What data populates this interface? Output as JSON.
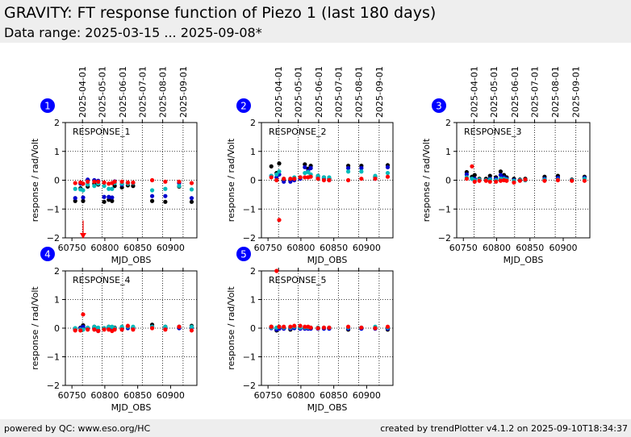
{
  "header": {
    "title": "GRAVITY: FT response function of Piezo 1 (last 180 days)",
    "subtitle": "Data range: 2025-03-15 ... 2025-09-08*"
  },
  "footer": {
    "left": "powered by QC: www.eso.org/HC",
    "right": "created by trendPlotter v4.1.2 on 2025-09-10T18:34:37"
  },
  "colors": {
    "black": "#000000",
    "blue": "#0000cc",
    "cyan": "#00bbbb",
    "red": "#ff0000",
    "badge": "#0000ff"
  },
  "chart_data": [
    {
      "type": "scatter",
      "panel": "1",
      "label": "RESPONSE_1",
      "xlabel": "MJD_OBS",
      "ylabel": "response / rad/Volt",
      "xlim": [
        60740,
        60940
      ],
      "ylim": [
        -2,
        2
      ],
      "xticks": [
        60750,
        60800,
        60850,
        60900
      ],
      "xtick_labels": [
        "60750",
        "60800",
        "60850",
        "60900"
      ],
      "yticks": [
        -2,
        -1,
        0,
        1,
        2
      ],
      "ytick_labels": [
        "−2",
        "−1",
        "0",
        "1",
        "2"
      ],
      "date_ticks": [
        60766,
        60796,
        60827,
        60857,
        60888,
        60919
      ],
      "date_labels": [
        "2025-04-01",
        "2025-05-01",
        "2025-06-01",
        "2025-07-01",
        "2025-08-01",
        "2025-09-01"
      ],
      "series": [
        {
          "color": "black",
          "x": [
            60755,
            60763,
            60767,
            60774,
            60784,
            60790,
            60799,
            60806,
            60811,
            60815,
            60826,
            60835,
            60843,
            60872,
            60892,
            60913,
            60932
          ],
          "y": [
            -0.72,
            -0.28,
            -0.72,
            -0.22,
            -0.12,
            -0.15,
            -0.75,
            -0.68,
            -0.72,
            -0.2,
            -0.25,
            -0.18,
            -0.2,
            -0.72,
            -0.75,
            -0.22,
            -0.75
          ]
        },
        {
          "color": "blue",
          "x": [
            60755,
            60763,
            60767,
            60774,
            60784,
            60790,
            60799,
            60806,
            60811,
            60815,
            60826,
            60835,
            60843,
            60872,
            60892,
            60913,
            60932
          ],
          "y": [
            -0.62,
            -0.12,
            -0.6,
            0.02,
            0.0,
            -0.02,
            -0.58,
            -0.58,
            -0.6,
            -0.04,
            -0.15,
            -0.1,
            -0.1,
            -0.55,
            -0.55,
            -0.1,
            -0.62
          ]
        },
        {
          "color": "cyan",
          "x": [
            60755,
            60763,
            60767,
            60774,
            60784,
            60790,
            60799,
            60806,
            60811,
            60815,
            60826,
            60835,
            60843,
            60872,
            60892,
            60913,
            60932
          ],
          "y": [
            -0.3,
            -0.32,
            -0.35,
            -0.15,
            -0.2,
            -0.12,
            -0.2,
            -0.3,
            -0.3,
            -0.1,
            -0.12,
            -0.12,
            -0.1,
            -0.35,
            -0.3,
            -0.2,
            -0.32
          ]
        },
        {
          "color": "red",
          "x": [
            60755,
            60763,
            60767,
            60774,
            60784,
            60790,
            60799,
            60806,
            60811,
            60815,
            60826,
            60835,
            60843,
            60872,
            60892,
            60913,
            60932
          ],
          "y": [
            -0.1,
            -0.08,
            -0.12,
            -0.05,
            -0.05,
            -0.05,
            -0.08,
            -0.12,
            -0.1,
            -0.05,
            -0.05,
            -0.08,
            -0.08,
            0.0,
            -0.05,
            -0.05,
            -0.1
          ]
        }
      ],
      "arrow": {
        "x": 60767,
        "from": -1.4,
        "to": -2.0
      }
    },
    {
      "type": "scatter",
      "panel": "2",
      "label": "RESPONSE_2",
      "xlabel": "MJD_OBS",
      "ylabel": "response / rad/Volt",
      "xlim": [
        60740,
        60940
      ],
      "ylim": [
        -2,
        2
      ],
      "xticks": [
        60750,
        60800,
        60850,
        60900
      ],
      "xtick_labels": [
        "60750",
        "60800",
        "60850",
        "60900"
      ],
      "yticks": [
        -2,
        -1,
        0,
        1,
        2
      ],
      "ytick_labels": [
        "−2",
        "−1",
        "0",
        "1",
        "2"
      ],
      "date_ticks": [
        60766,
        60796,
        60827,
        60857,
        60888,
        60919
      ],
      "date_labels": [
        "2025-04-01",
        "2025-05-01",
        "2025-06-01",
        "2025-07-01",
        "2025-08-01",
        "2025-09-01"
      ],
      "series": [
        {
          "color": "black",
          "x": [
            60755,
            60763,
            60767,
            60774,
            60784,
            60790,
            60799,
            60806,
            60811,
            60815,
            60826,
            60835,
            60843,
            60872,
            60892,
            60913,
            60932
          ],
          "y": [
            0.48,
            0.25,
            0.58,
            0.0,
            0.0,
            0.05,
            0.1,
            0.55,
            0.4,
            0.5,
            0.15,
            0.1,
            0.05,
            0.5,
            0.5,
            0.12,
            0.52
          ]
        },
        {
          "color": "blue",
          "x": [
            60755,
            60763,
            60767,
            60774,
            60784,
            60790,
            60799,
            60806,
            60811,
            60815,
            60826,
            60835,
            60843,
            60872,
            60892,
            60913,
            60932
          ],
          "y": [
            0.15,
            0.1,
            0.2,
            -0.05,
            -0.05,
            0.0,
            0.05,
            0.45,
            0.32,
            0.42,
            0.1,
            0.05,
            0.0,
            0.42,
            0.42,
            0.05,
            0.45
          ]
        },
        {
          "color": "cyan",
          "x": [
            60755,
            60763,
            60767,
            60774,
            60784,
            60790,
            60799,
            60806,
            60811,
            60815,
            60826,
            60835,
            60843,
            60872,
            60892,
            60913,
            60932
          ],
          "y": [
            0.15,
            0.2,
            0.3,
            0.05,
            0.05,
            0.1,
            0.1,
            0.25,
            0.28,
            0.2,
            0.15,
            0.1,
            0.1,
            0.3,
            0.3,
            0.15,
            0.25
          ]
        },
        {
          "color": "red",
          "x": [
            60755,
            60763,
            60767,
            60774,
            60784,
            60790,
            60799,
            60806,
            60811,
            60815,
            60826,
            60835,
            60843,
            60872,
            60892,
            60913,
            60932
          ],
          "y": [
            0.1,
            0.0,
            -1.38,
            0.05,
            0.05,
            0.05,
            0.1,
            0.1,
            0.1,
            0.12,
            0.05,
            0.0,
            0.0,
            0.0,
            0.05,
            0.05,
            0.12
          ]
        }
      ]
    },
    {
      "type": "scatter",
      "panel": "3",
      "label": "RESPONSE_3",
      "xlabel": "MJD_OBS",
      "ylabel": "response / rad/Volt",
      "xlim": [
        60740,
        60940
      ],
      "ylim": [
        -2,
        2
      ],
      "xticks": [
        60750,
        60800,
        60850,
        60900
      ],
      "xtick_labels": [
        "60750",
        "60800",
        "60850",
        "60900"
      ],
      "yticks": [
        -2,
        -1,
        0,
        1,
        2
      ],
      "ytick_labels": [
        "−2",
        "−1",
        "0",
        "1",
        "2"
      ],
      "date_ticks": [
        60766,
        60796,
        60827,
        60857,
        60888,
        60919
      ],
      "date_labels": [
        "2025-04-01",
        "2025-05-01",
        "2025-06-01",
        "2025-07-01",
        "2025-08-01",
        "2025-09-01"
      ],
      "series": [
        {
          "color": "black",
          "x": [
            60755,
            60763,
            60767,
            60774,
            60784,
            60790,
            60799,
            60806,
            60811,
            60815,
            60826,
            60835,
            60843,
            60872,
            60892,
            60913,
            60932
          ],
          "y": [
            0.28,
            0.12,
            0.18,
            0.05,
            0.05,
            0.15,
            0.1,
            0.3,
            0.18,
            0.1,
            0.05,
            0.02,
            0.05,
            0.12,
            0.15,
            0.02,
            0.12
          ]
        },
        {
          "color": "blue",
          "x": [
            60755,
            60763,
            60767,
            60774,
            60784,
            60790,
            60799,
            60806,
            60811,
            60815,
            60826,
            60835,
            60843,
            60872,
            60892,
            60913,
            60932
          ],
          "y": [
            0.2,
            0.05,
            0.05,
            0.0,
            0.0,
            0.05,
            0.05,
            0.18,
            0.1,
            0.05,
            0.0,
            0.0,
            0.0,
            0.05,
            0.08,
            0.0,
            0.08
          ]
        },
        {
          "color": "cyan",
          "x": [
            60755,
            60763,
            60767,
            60774,
            60784,
            60790,
            60799,
            60806,
            60811,
            60815,
            60826,
            60835,
            60843,
            60872,
            60892,
            60913,
            60932
          ],
          "y": [
            0.1,
            0.05,
            0.0,
            0.02,
            0.0,
            0.02,
            0.0,
            0.05,
            0.05,
            0.02,
            -0.02,
            0.0,
            0.0,
            0.02,
            0.02,
            0.0,
            0.05
          ]
        },
        {
          "color": "red",
          "x": [
            60755,
            60763,
            60767,
            60774,
            60784,
            60790,
            60799,
            60806,
            60811,
            60815,
            60826,
            60835,
            60843,
            60872,
            60892,
            60913,
            60932
          ],
          "y": [
            0.05,
            0.48,
            -0.05,
            -0.02,
            -0.02,
            -0.05,
            -0.05,
            -0.02,
            0.0,
            -0.02,
            -0.08,
            -0.02,
            0.02,
            -0.02,
            0.0,
            -0.02,
            -0.02
          ]
        }
      ]
    },
    {
      "type": "scatter",
      "panel": "4",
      "label": "RESPONSE_4",
      "xlabel": "MJD_OBS",
      "ylabel": "response / rad/Volt",
      "xlim": [
        60740,
        60940
      ],
      "ylim": [
        -2,
        2
      ],
      "xticks": [
        60750,
        60800,
        60850,
        60900
      ],
      "xtick_labels": [
        "60750",
        "60800",
        "60850",
        "60900"
      ],
      "yticks": [
        -2,
        -1,
        0,
        1,
        2
      ],
      "ytick_labels": [
        "−2",
        "−1",
        "0",
        "1",
        "2"
      ],
      "date_ticks": [
        60766,
        60796,
        60827,
        60857,
        60888,
        60919
      ],
      "date_labels": [],
      "series": [
        {
          "color": "black",
          "x": [
            60755,
            60763,
            60767,
            60774,
            60784,
            60790,
            60799,
            60806,
            60811,
            60815,
            60826,
            60835,
            60843,
            60872,
            60892,
            60913,
            60932
          ],
          "y": [
            -0.05,
            0.02,
            0.1,
            0.0,
            0.05,
            -0.08,
            0.0,
            0.05,
            0.0,
            0.02,
            0.0,
            0.05,
            0.02,
            0.12,
            0.05,
            0.05,
            0.08
          ]
        },
        {
          "color": "blue",
          "x": [
            60755,
            60763,
            60767,
            60774,
            60784,
            60790,
            60799,
            60806,
            60811,
            60815,
            60826,
            60835,
            60843,
            60872,
            60892,
            60913,
            60932
          ],
          "y": [
            -0.05,
            0.0,
            0.05,
            -0.02,
            0.0,
            -0.1,
            -0.02,
            0.0,
            -0.05,
            0.0,
            -0.02,
            0.0,
            0.0,
            0.05,
            0.0,
            0.0,
            0.02
          ]
        },
        {
          "color": "cyan",
          "x": [
            60755,
            60763,
            60767,
            60774,
            60784,
            60790,
            60799,
            60806,
            60811,
            60815,
            60826,
            60835,
            60843,
            60872,
            60892,
            60913,
            60932
          ],
          "y": [
            0.0,
            -0.05,
            -0.05,
            0.02,
            0.05,
            0.02,
            0.0,
            0.05,
            0.05,
            0.0,
            0.05,
            0.05,
            0.05,
            0.05,
            0.05,
            0.05,
            0.05
          ]
        },
        {
          "color": "red",
          "x": [
            60755,
            60763,
            60767,
            60774,
            60784,
            60790,
            60799,
            60806,
            60811,
            60815,
            60826,
            60835,
            60843,
            60872,
            60892,
            60913,
            60932
          ],
          "y": [
            -0.08,
            -0.08,
            0.48,
            -0.05,
            -0.05,
            -0.1,
            -0.05,
            -0.05,
            -0.1,
            -0.05,
            -0.05,
            0.08,
            -0.05,
            0.0,
            -0.05,
            0.05,
            -0.08
          ]
        }
      ]
    },
    {
      "type": "scatter",
      "panel": "5",
      "label": "RESPONSE_5",
      "xlabel": "MJD_OBS",
      "ylabel": "response / rad/Volt",
      "xlim": [
        60740,
        60940
      ],
      "ylim": [
        -2,
        2
      ],
      "xticks": [
        60750,
        60800,
        60850,
        60900
      ],
      "xtick_labels": [
        "60750",
        "60800",
        "60850",
        "60900"
      ],
      "yticks": [
        -2,
        -1,
        0,
        1,
        2
      ],
      "ytick_labels": [
        "−2",
        "−1",
        "0",
        "1",
        "2"
      ],
      "date_ticks": [
        60766,
        60796,
        60827,
        60857,
        60888,
        60919
      ],
      "date_labels": [],
      "series": [
        {
          "color": "black",
          "x": [
            60755,
            60763,
            60767,
            60774,
            60784,
            60790,
            60799,
            60806,
            60811,
            60815,
            60826,
            60835,
            60843,
            60872,
            60892,
            60913,
            60932
          ],
          "y": [
            0.05,
            -0.08,
            0.0,
            0.0,
            -0.05,
            0.02,
            0.0,
            0.0,
            0.0,
            0.0,
            0.0,
            0.0,
            0.0,
            -0.05,
            0.0,
            0.0,
            -0.05
          ]
        },
        {
          "color": "blue",
          "x": [
            60755,
            60763,
            60767,
            60774,
            60784,
            60790,
            60799,
            60806,
            60811,
            60815,
            60826,
            60835,
            60843,
            60872,
            60892,
            60913,
            60932
          ],
          "y": [
            0.0,
            -0.05,
            -0.02,
            -0.02,
            -0.02,
            0.0,
            -0.02,
            -0.02,
            -0.02,
            -0.02,
            -0.02,
            -0.02,
            -0.02,
            -0.02,
            -0.02,
            -0.02,
            -0.02
          ]
        },
        {
          "color": "cyan",
          "x": [
            60755,
            60763,
            60767,
            60774,
            60784,
            60790,
            60799,
            60806,
            60811,
            60815,
            60826,
            60835,
            60843,
            60872,
            60892,
            60913,
            60932
          ],
          "y": [
            0.02,
            0.02,
            0.05,
            0.02,
            0.02,
            0.05,
            0.02,
            0.02,
            0.02,
            0.02,
            0.02,
            0.02,
            0.02,
            0.02,
            0.02,
            0.05,
            0.02
          ]
        },
        {
          "color": "red",
          "x": [
            60755,
            60763,
            60767,
            60774,
            60784,
            60790,
            60799,
            60806,
            60811,
            60815,
            60826,
            60835,
            60843,
            60872,
            60892,
            60913,
            60932
          ],
          "y": [
            0.05,
            2.0,
            0.05,
            0.05,
            0.05,
            0.08,
            0.08,
            0.05,
            0.05,
            0.02,
            0.0,
            0.02,
            0.02,
            0.05,
            0.02,
            0.0,
            0.05
          ]
        }
      ]
    }
  ]
}
